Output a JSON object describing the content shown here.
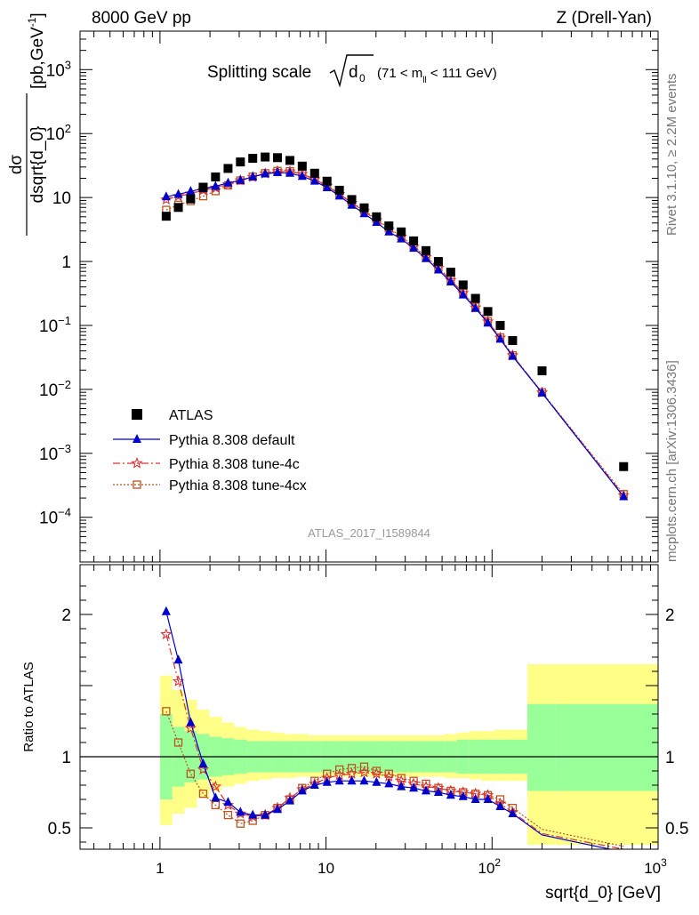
{
  "header": {
    "left": "8000 GeV pp",
    "right": "Z (Drell-Yan)"
  },
  "side_labels": {
    "rivet": "Rivet 3.1.10, ≥ 2.2M events",
    "mcplots": "mcplots.cern.ch [arXiv:1306.3436]"
  },
  "chart_data": {
    "type": "scatter",
    "title": "Splitting scale √d₀ (71 < m_ll < 111 GeV)",
    "title_parts": {
      "main": "Splitting scale",
      "var": "d",
      "sub": "0",
      "cut_prefix": "(71 < m",
      "cut_sub": "ll",
      "cut_suffix": " < 111 GeV)"
    },
    "analysis_id": "ATLAS_2017_I1589844",
    "xlabel": "sqrt{d_0} [GeV]",
    "ylabel_top": "dσ/dsqrt{d_0} [pb,GeV⁻¹]",
    "ylabel_top_parts": {
      "num": "dσ",
      "den": "dsqrt{d_0}",
      "unit": "[pb,GeV",
      "unit_sup": "-1",
      "unit_end": "]"
    },
    "ylabel_bottom": "Ratio to ATLAS",
    "xscale": "log",
    "xlim": [
      0.33,
      1000
    ],
    "top_panel": {
      "yscale": "log",
      "ylim": [
        2e-05,
        4000
      ]
    },
    "bottom_panel": {
      "yscale": "linear",
      "ylim": [
        0.35,
        2.35
      ],
      "reference_line": 1
    },
    "x_ticks": [
      {
        "value": 1,
        "base": "1",
        "exp": ""
      },
      {
        "value": 10,
        "base": "10",
        "exp": ""
      },
      {
        "value": 100,
        "base": "10",
        "exp": "2"
      },
      {
        "value": 1000,
        "base": "10",
        "exp": "3"
      }
    ],
    "y_ticks_top": [
      {
        "value": 0.0001,
        "base": "10",
        "exp": "−4"
      },
      {
        "value": 0.001,
        "base": "10",
        "exp": "−3"
      },
      {
        "value": 0.01,
        "base": "10",
        "exp": "−2"
      },
      {
        "value": 0.1,
        "base": "10",
        "exp": "−1"
      },
      {
        "value": 1,
        "base": "1",
        "exp": ""
      },
      {
        "value": 10,
        "base": "10",
        "exp": ""
      },
      {
        "value": 100,
        "base": "10",
        "exp": "2"
      },
      {
        "value": 1000,
        "base": "10",
        "exp": "3"
      }
    ],
    "y_ticks_bottom": [
      {
        "value": 0.5,
        "label": "0.5"
      },
      {
        "value": 1,
        "label": "1"
      },
      {
        "value": 2,
        "label": "2"
      }
    ],
    "legend_position": "lower-left",
    "x": [
      1.09,
      1.29,
      1.53,
      1.82,
      2.16,
      2.57,
      3.05,
      3.62,
      4.3,
      5.1,
      6.06,
      7.19,
      8.54,
      10.14,
      12.04,
      14.29,
      16.97,
      20.14,
      23.91,
      28.39,
      33.7,
      40.01,
      47.5,
      56.39,
      66.94,
      79.47,
      94.35,
      112.0,
      133.0,
      200.0,
      620.0
    ],
    "series": [
      {
        "name": "ATLAS",
        "color": "#000000",
        "marker": "square-filled",
        "values": [
          5.1,
          7.0,
          9.5,
          14.5,
          21.0,
          28.5,
          36.0,
          41.0,
          43.0,
          42.0,
          38.0,
          31.0,
          24.0,
          18.0,
          13.0,
          9.3,
          6.9,
          5.0,
          3.6,
          2.9,
          2.1,
          1.48,
          1.0,
          0.68,
          0.43,
          0.265,
          0.165,
          0.1,
          0.058,
          0.0195,
          0.00062
        ],
        "band_inner": [
          0.7,
          0.79,
          0.82,
          0.84,
          0.86,
          0.87,
          0.88,
          0.89,
          0.89,
          0.89,
          0.89,
          0.89,
          0.89,
          0.89,
          0.89,
          0.89,
          0.89,
          0.89,
          0.89,
          0.89,
          0.89,
          0.89,
          0.89,
          0.89,
          0.88,
          0.88,
          0.88,
          0.88,
          0.88,
          0.76,
          0.76
        ],
        "band_inner_hi": [
          1.3,
          1.21,
          1.18,
          1.16,
          1.14,
          1.13,
          1.12,
          1.11,
          1.11,
          1.11,
          1.11,
          1.11,
          1.11,
          1.11,
          1.11,
          1.11,
          1.11,
          1.11,
          1.11,
          1.11,
          1.11,
          1.11,
          1.11,
          1.11,
          1.12,
          1.12,
          1.12,
          1.12,
          1.12,
          1.37,
          1.37
        ],
        "band_outer_lo": [
          0.52,
          0.6,
          0.64,
          0.71,
          0.76,
          0.79,
          0.81,
          0.83,
          0.84,
          0.85,
          0.85,
          0.86,
          0.86,
          0.86,
          0.86,
          0.86,
          0.86,
          0.86,
          0.86,
          0.86,
          0.86,
          0.86,
          0.86,
          0.85,
          0.85,
          0.84,
          0.83,
          0.83,
          0.83,
          0.38,
          0.38
        ],
        "band_outer_hi": [
          1.57,
          1.47,
          1.4,
          1.33,
          1.28,
          1.24,
          1.21,
          1.19,
          1.18,
          1.17,
          1.16,
          1.16,
          1.15,
          1.15,
          1.15,
          1.15,
          1.15,
          1.15,
          1.15,
          1.15,
          1.15,
          1.15,
          1.15,
          1.16,
          1.17,
          1.18,
          1.18,
          1.19,
          1.19,
          1.65,
          1.65
        ]
      },
      {
        "name": "Pythia 8.308 default",
        "color": "#0000cc",
        "marker": "triangle-filled",
        "line": "solid",
        "values": [
          10.3,
          11.2,
          12.5,
          13.8,
          15.0,
          16.9,
          18.6,
          21.1,
          23.5,
          24.6,
          24.0,
          21.5,
          18.1,
          14.3,
          10.6,
          7.6,
          5.6,
          4.1,
          2.9,
          2.26,
          1.61,
          1.11,
          0.74,
          0.48,
          0.3,
          0.185,
          0.109,
          0.061,
          0.033,
          0.0088,
          0.00021
        ],
        "ratio": [
          2.02,
          1.68,
          1.24,
          0.95,
          0.71,
          0.68,
          0.61,
          0.59,
          0.59,
          0.63,
          0.69,
          0.76,
          0.8,
          0.82,
          0.83,
          0.83,
          0.83,
          0.82,
          0.81,
          0.79,
          0.78,
          0.76,
          0.75,
          0.73,
          0.72,
          0.7,
          0.7,
          0.65,
          0.6,
          0.45,
          0.33
        ]
      },
      {
        "name": "Pythia 8.308 tune-4c",
        "color": "#dd3333",
        "marker": "star-open",
        "line": "dashdot",
        "values": [
          9.3,
          10.5,
          11.5,
          13.0,
          14.2,
          16.0,
          18.5,
          20.9,
          23.7,
          25.8,
          25.5,
          23.3,
          19.2,
          15.2,
          11.3,
          8.2,
          6.1,
          4.4,
          3.17,
          2.44,
          1.7,
          1.17,
          0.79,
          0.51,
          0.32,
          0.19,
          0.115,
          0.064,
          0.034,
          0.0089,
          0.00022
        ],
        "ratio": [
          1.86,
          1.53,
          1.2,
          0.91,
          0.79,
          0.66,
          0.6,
          0.58,
          0.59,
          0.64,
          0.71,
          0.77,
          0.81,
          0.85,
          0.87,
          0.88,
          0.89,
          0.88,
          0.86,
          0.83,
          0.81,
          0.79,
          0.78,
          0.76,
          0.75,
          0.74,
          0.73,
          0.67,
          0.61,
          0.46,
          0.35
        ]
      },
      {
        "name": "Pythia 8.308 tune-4cx",
        "color": "#bb5522",
        "marker": "square-open",
        "line": "dotted",
        "values": [
          6.4,
          7.7,
          8.8,
          10.5,
          12.6,
          15.5,
          18.5,
          21.2,
          24.0,
          26.0,
          25.8,
          23.6,
          19.5,
          15.5,
          11.4,
          8.4,
          6.3,
          4.6,
          3.3,
          2.48,
          1.75,
          1.19,
          0.8,
          0.52,
          0.325,
          0.195,
          0.116,
          0.065,
          0.034,
          0.009,
          0.00023
        ],
        "ratio": [
          1.32,
          1.1,
          0.88,
          0.74,
          0.66,
          0.59,
          0.53,
          0.55,
          0.59,
          0.64,
          0.7,
          0.78,
          0.83,
          0.88,
          0.91,
          0.92,
          0.93,
          0.9,
          0.88,
          0.85,
          0.83,
          0.81,
          0.78,
          0.76,
          0.75,
          0.74,
          0.73,
          0.7,
          0.64,
          0.49,
          0.37
        ]
      }
    ]
  }
}
